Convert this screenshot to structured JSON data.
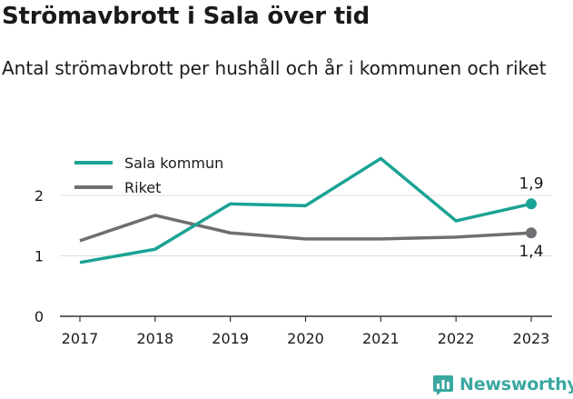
{
  "title": "Strömavbrott i Sala över tid",
  "subtitle": "Antal strömavbrott per hushåll och år i kommunen och riket",
  "brand": {
    "name": "Newsworthy",
    "icon": "newsworthy-logo-icon"
  },
  "colors": {
    "sala": "#1aa394",
    "riket": "#6e6e73",
    "grid": "#dcdcdc",
    "axis": "#333333",
    "text": "#1a1a1a"
  },
  "chart_data": {
    "type": "line",
    "x": [
      "2017",
      "2018",
      "2019",
      "2020",
      "2021",
      "2022",
      "2023"
    ],
    "series": [
      {
        "name": "Sala kommun",
        "values": [
          0.89,
          1.11,
          1.86,
          1.83,
          2.61,
          1.58,
          1.86
        ],
        "end_label": "1,9"
      },
      {
        "name": "Riket",
        "values": [
          1.25,
          1.67,
          1.38,
          1.28,
          1.28,
          1.31,
          1.38
        ],
        "end_label": "1,4"
      }
    ],
    "ylim": [
      0,
      2.7
    ],
    "yticks": [
      "0",
      "1",
      "2"
    ],
    "xlabel": "",
    "ylabel": "",
    "grid": true,
    "legend": "top-left"
  }
}
